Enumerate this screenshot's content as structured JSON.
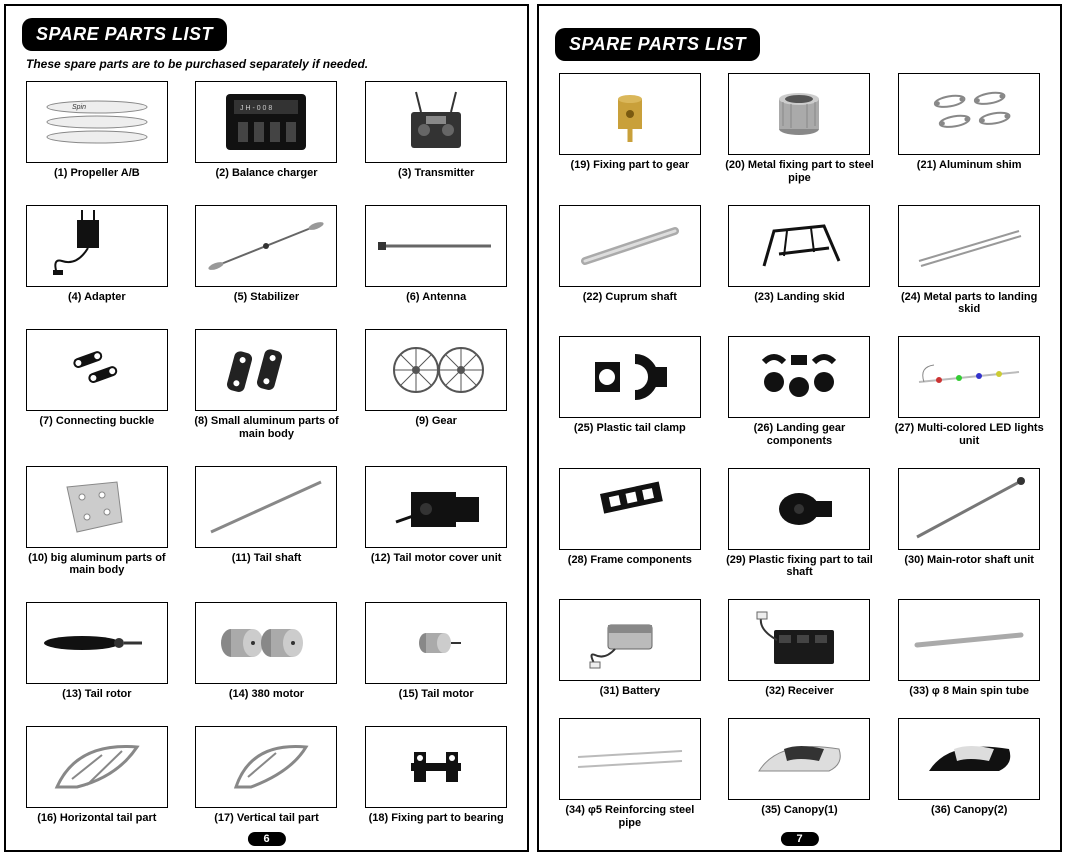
{
  "title": "SPARE PARTS LIST",
  "subtitle": "These spare parts are to be purchased separately if needed.",
  "page_left_num": "6",
  "page_right_num": "7",
  "colors": {
    "band_bg": "#000000",
    "band_fg": "#ffffff",
    "border": "#000000",
    "text": "#000000",
    "bg": "#ffffff"
  },
  "left_parts": [
    {
      "n": 1,
      "label": "(1) Propeller A/B",
      "icon": "propeller"
    },
    {
      "n": 2,
      "label": "(2) Balance charger",
      "icon": "charger"
    },
    {
      "n": 3,
      "label": "(3) Transmitter",
      "icon": "transmitter"
    },
    {
      "n": 4,
      "label": "(4) Adapter",
      "icon": "adapter"
    },
    {
      "n": 5,
      "label": "(5) Stabilizer",
      "icon": "stabilizer"
    },
    {
      "n": 6,
      "label": "(6) Antenna",
      "icon": "antenna"
    },
    {
      "n": 7,
      "label": "(7) Connecting buckle",
      "icon": "buckle"
    },
    {
      "n": 8,
      "label": "(8) Small aluminum parts of main body",
      "icon": "smallalum"
    },
    {
      "n": 9,
      "label": "(9) Gear",
      "icon": "gear"
    },
    {
      "n": 10,
      "label": "(10) big aluminum parts of main body",
      "icon": "bigalum"
    },
    {
      "n": 11,
      "label": "(11) Tail shaft",
      "icon": "tailshaft"
    },
    {
      "n": 12,
      "label": "(12) Tail motor cover unit",
      "icon": "tailcover"
    },
    {
      "n": 13,
      "label": "(13) Tail rotor",
      "icon": "tailrotor"
    },
    {
      "n": 14,
      "label": "(14) 380 motor",
      "icon": "motor380"
    },
    {
      "n": 15,
      "label": "(15) Tail motor",
      "icon": "tailmotor"
    },
    {
      "n": 16,
      "label": "(16) Horizontal tail part",
      "icon": "htail"
    },
    {
      "n": 17,
      "label": "(17) Vertical tail part",
      "icon": "vtail"
    },
    {
      "n": 18,
      "label": "(18) Fixing part to bearing",
      "icon": "fixbearing"
    }
  ],
  "right_parts": [
    {
      "n": 19,
      "label": "(19) Fixing part to gear",
      "icon": "fixgear"
    },
    {
      "n": 20,
      "label": "(20) Metal fixing part to steel pipe",
      "icon": "metalfix"
    },
    {
      "n": 21,
      "label": "(21) Aluminum shim",
      "icon": "shim"
    },
    {
      "n": 22,
      "label": "(22) Cuprum shaft",
      "icon": "cuprum"
    },
    {
      "n": 23,
      "label": "(23) Landing skid",
      "icon": "skid"
    },
    {
      "n": 24,
      "label": "(24) Metal parts to landing skid",
      "icon": "skidmetal"
    },
    {
      "n": 25,
      "label": "(25) Plastic tail clamp",
      "icon": "tailclamp"
    },
    {
      "n": 26,
      "label": "(26) Landing gear components",
      "icon": "lgcomp"
    },
    {
      "n": 27,
      "label": "(27) Multi-colored LED lights unit",
      "icon": "led"
    },
    {
      "n": 28,
      "label": "(28) Frame components",
      "icon": "frame"
    },
    {
      "n": 29,
      "label": "(29) Plastic fixing part to tail shaft",
      "icon": "plasticfix"
    },
    {
      "n": 30,
      "label": "(30) Main-rotor shaft unit",
      "icon": "mainshaft"
    },
    {
      "n": 31,
      "label": "(31) Battery",
      "icon": "battery"
    },
    {
      "n": 32,
      "label": "(32) Receiver",
      "icon": "receiver"
    },
    {
      "n": 33,
      "label": "(33)  φ 8 Main spin tube",
      "icon": "spintube"
    },
    {
      "n": 34,
      "label": "(34) φ5 Reinforcing steel pipe",
      "icon": "steelpipe"
    },
    {
      "n": 35,
      "label": "(35) Canopy(1)",
      "icon": "canopy1"
    },
    {
      "n": 36,
      "label": "(36) Canopy(2)",
      "icon": "canopy2"
    }
  ]
}
